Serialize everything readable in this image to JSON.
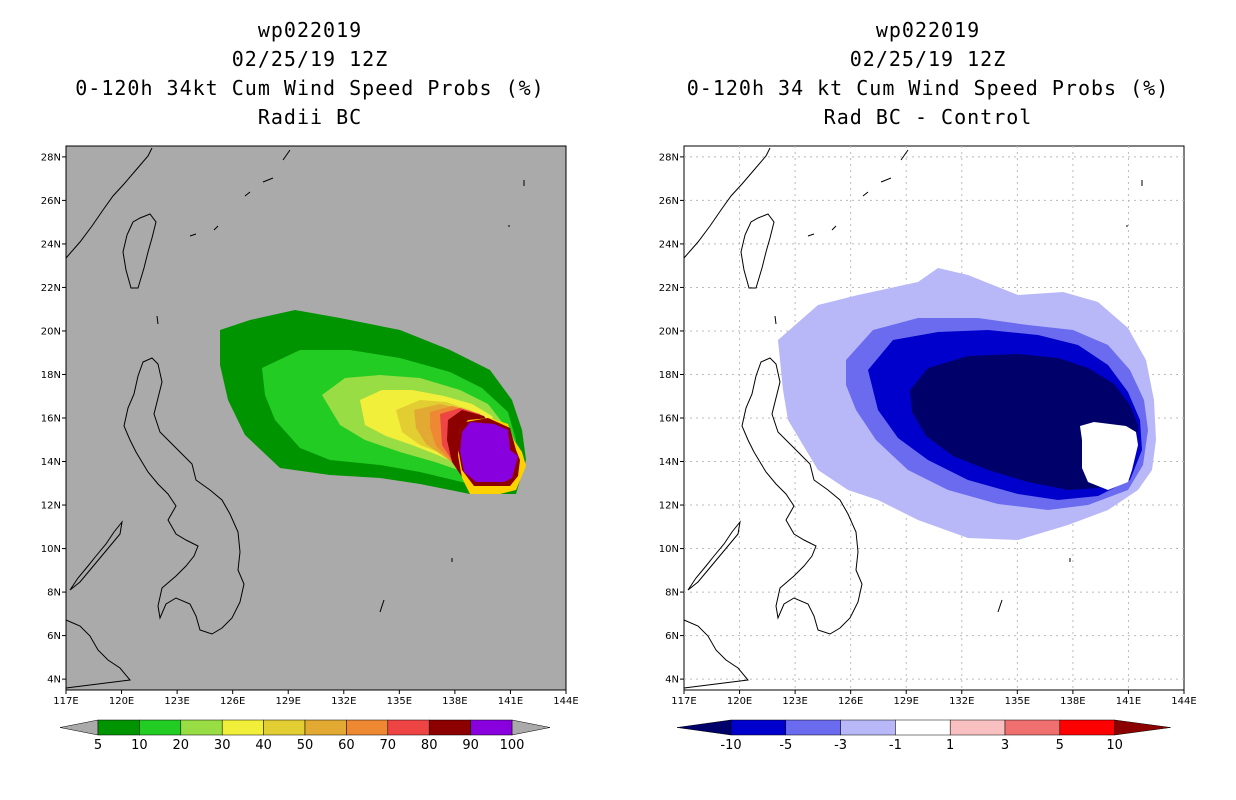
{
  "left_panel": {
    "title_lines": [
      "wp022019",
      "02/25/19 12Z",
      "0-120h 34kt Cum Wind Speed Probs (%)",
      "Radii BC"
    ],
    "colorbar": {
      "labels": [
        "5",
        "10",
        "20",
        "30",
        "40",
        "50",
        "60",
        "70",
        "80",
        "90",
        "100"
      ],
      "colors": [
        "#009400",
        "#22cc22",
        "#99dd44",
        "#f2ef3a",
        "#e2cd32",
        "#e2aa32",
        "#ee8833",
        "#ee4444",
        "#8c0000",
        "#8800dd"
      ]
    },
    "background_color": "#aaaaaa"
  },
  "right_panel": {
    "title_lines": [
      "wp022019",
      "02/25/19 12Z",
      "0-120h 34 kt Cum Wind Speed Probs (%)",
      "Rad BC - Control"
    ],
    "colorbar": {
      "labels": [
        "-10",
        "-5",
        "-3",
        "-1",
        "1",
        "3",
        "5",
        "10"
      ],
      "colors": [
        "#0000cc",
        "#6b6bf0",
        "#b8b8f8",
        "#ffffff",
        "#f8c0c0",
        "#f07070",
        "#ff0000"
      ],
      "end_colors": [
        "#00006b",
        "#8c0000"
      ]
    },
    "background_color": "#ffffff"
  },
  "axes": {
    "lat_labels": [
      "28N",
      "26N",
      "24N",
      "22N",
      "20N",
      "18N",
      "16N",
      "14N",
      "12N",
      "10N",
      "8N",
      "6N",
      "4N"
    ],
    "lon_labels": [
      "117E",
      "120E",
      "123E",
      "126E",
      "129E",
      "132E",
      "135E",
      "138E",
      "141E",
      "144E"
    ],
    "lon_range": [
      117,
      144
    ],
    "lat_range": [
      3.5,
      28.5
    ]
  }
}
